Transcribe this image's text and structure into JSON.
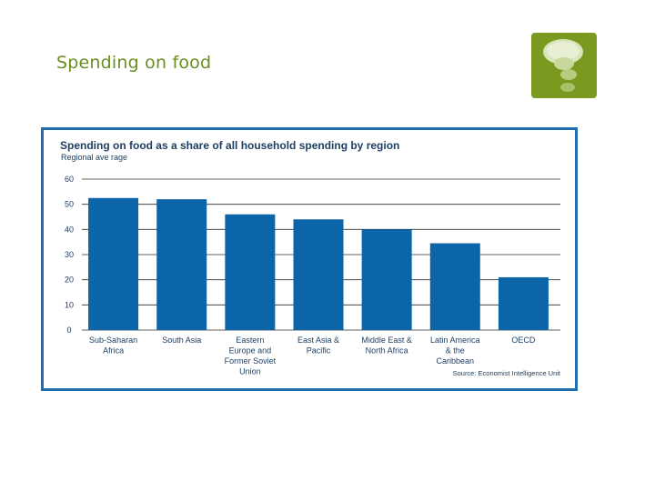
{
  "slide": {
    "title": "Spending on food"
  },
  "logo": {
    "icon": "speech-bubble-icon",
    "background": "#7a9a1f"
  },
  "chart_data": {
    "type": "bar",
    "title": "Spending on food as a share of all household spending by region",
    "subtitle": "Regional ave rage",
    "source": "Source: Economist Intelligence Unit",
    "xlabel": "",
    "ylabel": "",
    "ylim": [
      0,
      60
    ],
    "yticks": [
      0,
      10,
      20,
      30,
      40,
      50,
      60
    ],
    "grid": true,
    "bar_color": "#0b65a8",
    "frame_color": "#1f6fb0",
    "categories": [
      [
        "Sub-Saharan",
        "Africa"
      ],
      [
        "South Asia"
      ],
      [
        "Eastern",
        "Europe and",
        "Former Soviet",
        "Union"
      ],
      [
        "East Asia &",
        "Pacific"
      ],
      [
        "Middle East &",
        "North Africa"
      ],
      [
        "Latin America",
        "& the",
        "Caribbean"
      ],
      [
        "OECD"
      ]
    ],
    "values": [
      52.5,
      52,
      46,
      44,
      40,
      34.5,
      21
    ]
  }
}
